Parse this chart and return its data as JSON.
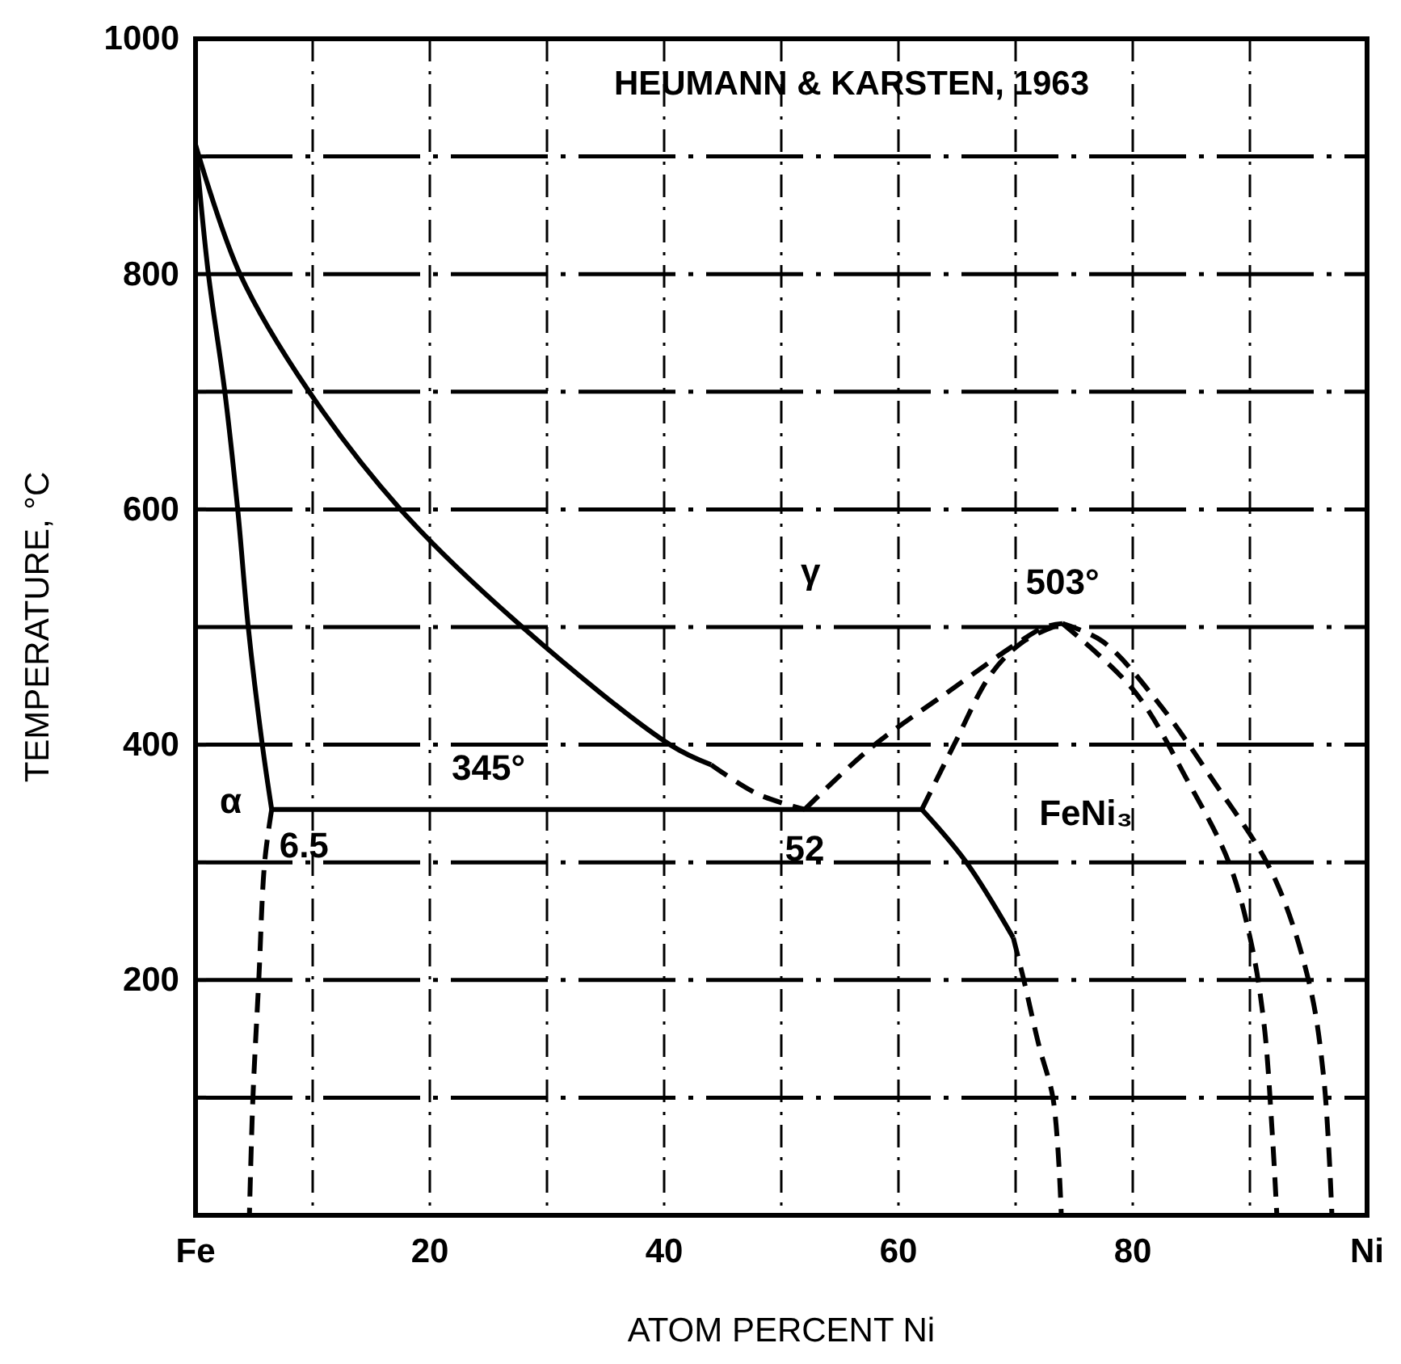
{
  "chart_data": {
    "type": "line",
    "xlabel": "ATOM PERCENT Ni",
    "ylabel": "TEMPERATURE, °C",
    "xlim": [
      0,
      100
    ],
    "ylim": [
      0,
      1000
    ],
    "xticks": [
      {
        "value": 0,
        "label": "Fe"
      },
      {
        "value": 10,
        "label": null
      },
      20,
      {
        "value": 30,
        "label": null
      },
      40,
      {
        "value": 50,
        "label": null
      },
      60,
      {
        "value": 70,
        "label": null
      },
      80,
      {
        "value": 90,
        "label": null
      },
      {
        "value": 100,
        "label": "Ni"
      }
    ],
    "yticks": [
      {
        "value": 100,
        "label": null
      },
      200,
      {
        "value": 300,
        "label": null
      },
      400,
      {
        "value": 500,
        "label": null
      },
      600,
      {
        "value": 700,
        "label": null
      },
      800,
      {
        "value": 900,
        "label": null
      },
      1000
    ],
    "grid": true,
    "marker": "none",
    "series": [
      {
        "color": "#000000",
        "line_style": "solid",
        "x": [
          0,
          1.1,
          2.5,
          3.6,
          4.5,
          5.7,
          6.5
        ],
        "values": [
          910,
          800,
          700,
          600,
          500,
          400,
          345
        ]
      },
      {
        "color": "#000000",
        "line_style": "dashed",
        "x": [
          6.5,
          5.9,
          5.4,
          4.9,
          4.6
        ],
        "values": [
          345,
          300,
          200,
          100,
          0
        ]
      },
      {
        "color": "#000000",
        "line_style": "solid",
        "x": [
          0,
          3.8,
          9.7,
          17.5,
          27.9,
          40.5,
          44
        ],
        "values": [
          910,
          800,
          700,
          600,
          500,
          400,
          383
        ]
      },
      {
        "color": "#000000",
        "line_style": "dashed",
        "x": [
          44,
          48,
          52
        ],
        "values": [
          383,
          358,
          345
        ]
      },
      {
        "color": "#000000",
        "line_style": "solid",
        "x": [
          6.5,
          62
        ],
        "values": [
          345,
          345
        ]
      },
      {
        "color": "#000000",
        "line_style": "dashed",
        "x": [
          52,
          57.6,
          64.4,
          69.8,
          72.5,
          74
        ],
        "values": [
          345,
          397,
          446,
          484,
          500,
          503
        ]
      },
      {
        "color": "#000000",
        "line_style": "dashed",
        "x": [
          62,
          64.8,
          67.9,
          70.7,
          74
        ],
        "values": [
          345,
          401,
          460,
          488,
          503
        ]
      },
      {
        "color": "#000000",
        "line_style": "solid",
        "x": [
          62,
          65.8,
          69.8
        ],
        "values": [
          345,
          300,
          236
        ]
      },
      {
        "color": "#000000",
        "line_style": "dashed",
        "x": [
          69.8,
          70.7,
          72,
          73.2,
          73.9
        ],
        "values": [
          236,
          200,
          144,
          99,
          0
        ]
      },
      {
        "color": "#000000",
        "line_style": "dashed",
        "x": [
          74,
          80.1,
          84.7,
          88.2,
          90.1,
          91.2,
          91.9,
          92.3
        ],
        "values": [
          503,
          446,
          369,
          300,
          232,
          163,
          71,
          0
        ]
      },
      {
        "color": "#000000",
        "line_style": "dashed",
        "x": [
          74,
          77.4,
          82,
          86.9,
          91.9,
          95,
          96.3,
          97
        ],
        "values": [
          503,
          488,
          438,
          369,
          291,
          200,
          117,
          0
        ]
      }
    ],
    "annotations": [
      "HEUMANN & KARSTEN, 1963",
      "γ",
      "α",
      {
        "text": "345°",
        "x": 25,
        "y": 345
      },
      {
        "text": "6.5",
        "x": 6.5,
        "y": 345
      },
      {
        "text": "52",
        "x": 52,
        "y": 345
      },
      {
        "text": "503°",
        "x": 74,
        "y": 503
      },
      "FeNi₃"
    ]
  }
}
